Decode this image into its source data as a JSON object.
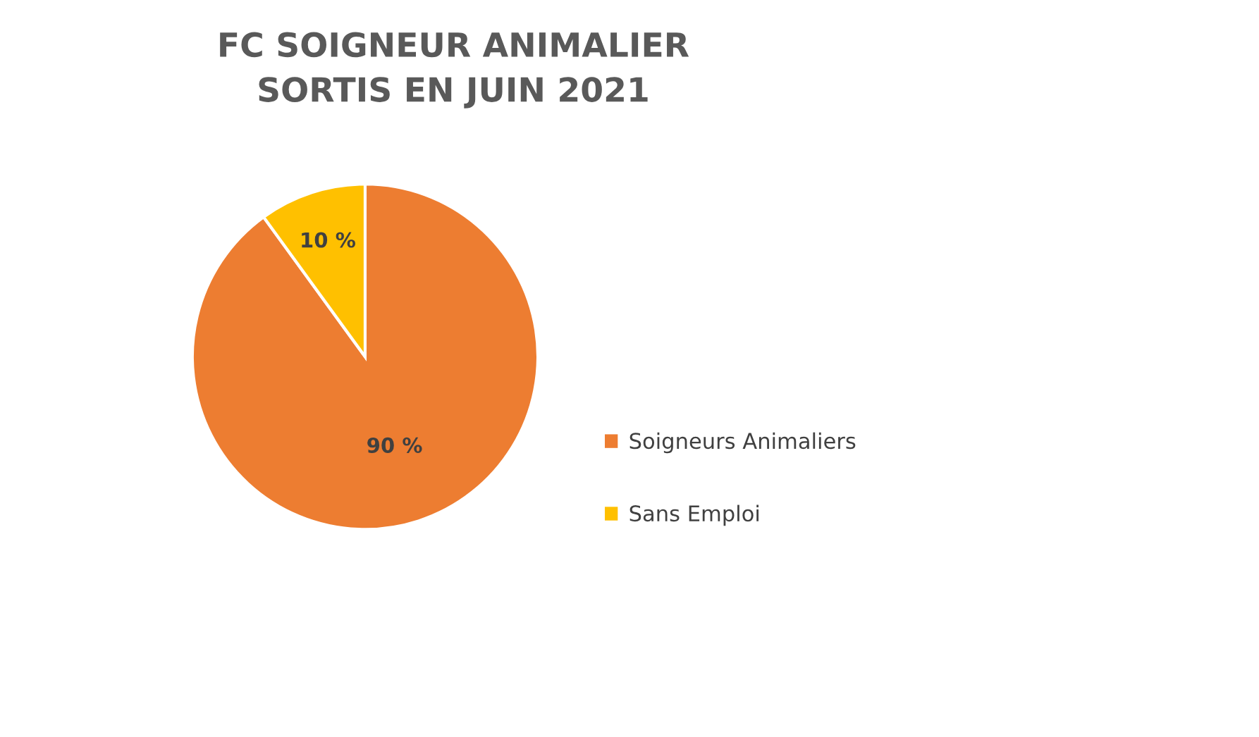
{
  "chart_data": {
    "type": "pie",
    "title": "FC SOIGNEUR ANIMALIER\nSORTIS EN JUIN 2021",
    "categories": [
      "Soigneurs Animaliers",
      "Sans Emploi"
    ],
    "values": [
      90,
      10
    ],
    "colors": [
      "#ed7d31",
      "#ffc000"
    ],
    "value_labels": [
      "90 %",
      "10 %"
    ],
    "legend": "right"
  }
}
